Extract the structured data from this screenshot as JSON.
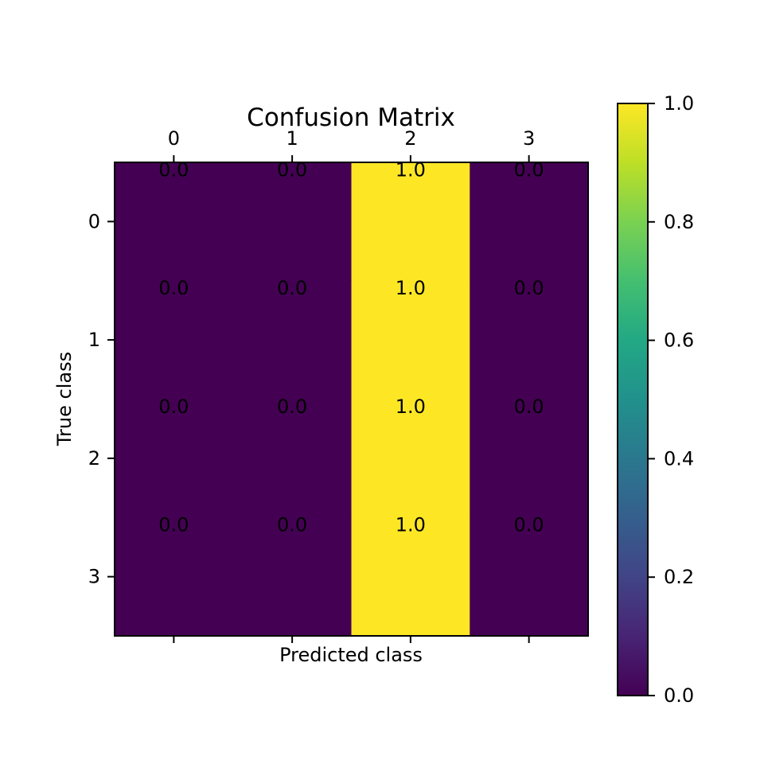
{
  "chart_data": {
    "type": "heatmap",
    "title": "Confusion Matrix",
    "xlabel": "Predicted class",
    "ylabel": "True class",
    "x_categories": [
      "0",
      "1",
      "2",
      "3"
    ],
    "y_categories": [
      "0",
      "1",
      "2",
      "3"
    ],
    "values": [
      [
        0.0,
        0.0,
        1.0,
        0.0
      ],
      [
        0.0,
        0.0,
        1.0,
        0.0
      ],
      [
        0.0,
        0.0,
        1.0,
        0.0
      ],
      [
        0.0,
        0.0,
        1.0,
        0.0
      ]
    ],
    "value_labels": [
      [
        "0.0",
        "0.0",
        "1.0",
        "0.0"
      ],
      [
        "0.0",
        "0.0",
        "1.0",
        "0.0"
      ],
      [
        "0.0",
        "0.0",
        "1.0",
        "0.0"
      ],
      [
        "0.0",
        "0.0",
        "1.0",
        "0.0"
      ]
    ],
    "colorbar": {
      "range": [
        0.0,
        1.0
      ],
      "ticks": [
        0.0,
        0.2,
        0.4,
        0.6,
        0.8,
        1.0
      ],
      "tick_labels": [
        "0.0",
        "0.2",
        "0.4",
        "0.6",
        "0.8",
        "1.0"
      ],
      "colormap": "viridis"
    },
    "x_tick_position": "top",
    "grid": false
  }
}
